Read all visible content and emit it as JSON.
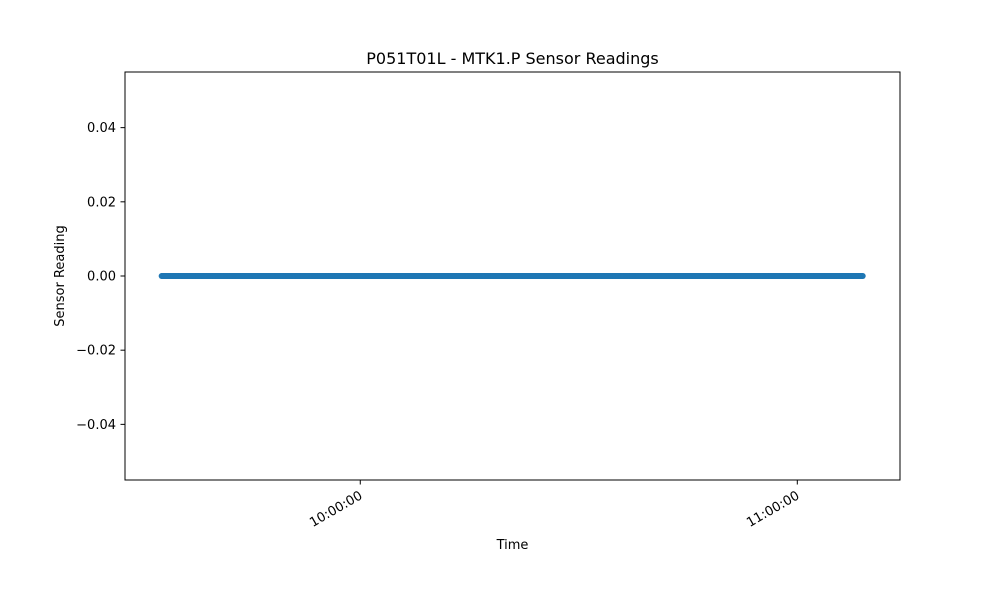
{
  "chart_data": {
    "type": "scatter",
    "title": "P051T01L - MTK1.P Sensor Readings",
    "xlabel": "Time",
    "ylabel": "Sensor Reading",
    "x_range": [
      "09:27:42",
      "11:14:06"
    ],
    "ylim": [
      -0.055,
      0.055
    ],
    "x_ticks": [
      {
        "label": "10:00:00",
        "value": "10:00:00"
      },
      {
        "label": "11:00:00",
        "value": "11:00:00"
      }
    ],
    "y_ticks": [
      {
        "label": "0.04",
        "value": 0.04
      },
      {
        "label": "0.02",
        "value": 0.02
      },
      {
        "label": "0.00",
        "value": 0.0
      },
      {
        "label": "−0.02",
        "value": -0.02
      },
      {
        "label": "−0.04",
        "value": -0.04
      }
    ],
    "grid": false,
    "legend": "none",
    "series": [
      {
        "color": "#1f77b4",
        "x_start": "09:32:44",
        "x_end": "11:09:03",
        "sample_interval_seconds": 5,
        "value": 0.0
      }
    ]
  }
}
